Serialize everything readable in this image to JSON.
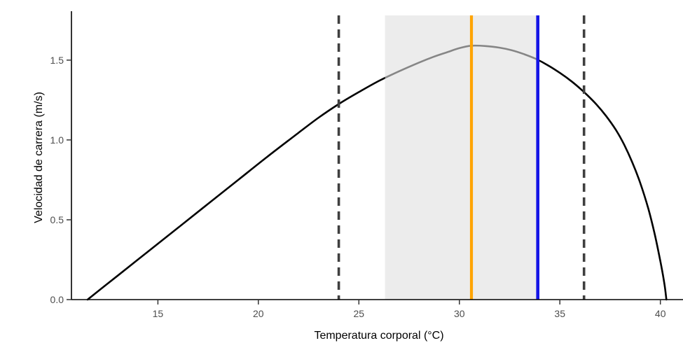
{
  "figure": {
    "background": "#ffffff"
  },
  "chart_data": {
    "type": "line",
    "title": "",
    "xlabel": "Temperatura corporal (°C)",
    "ylabel": "Velocidad de carrera (m/s)",
    "xlim": [
      10.7,
      41.3
    ],
    "ylim": [
      0,
      1.78
    ],
    "grid": false,
    "legend": "none",
    "x_ticks": [
      {
        "value": 15,
        "label": "15"
      },
      {
        "value": 20,
        "label": "20"
      },
      {
        "value": 25,
        "label": "25"
      },
      {
        "value": 30,
        "label": "30"
      },
      {
        "value": 35,
        "label": "35"
      },
      {
        "value": 40,
        "label": "40"
      }
    ],
    "y_ticks": [
      {
        "value": 0,
        "label": "0.0"
      },
      {
        "value": 0.5,
        "label": "0.5"
      },
      {
        "value": 1.0,
        "label": "1.0"
      },
      {
        "value": 1.5,
        "label": "1.5"
      }
    ],
    "series": [
      {
        "name": "curva-rendimiento-termico",
        "type": "line",
        "color": "#000000",
        "width": 2.6,
        "points": [
          [
            11.5,
            0.0
          ],
          [
            12.2,
            0.07
          ],
          [
            13.0,
            0.15
          ],
          [
            14.5,
            0.3
          ],
          [
            16.0,
            0.45
          ],
          [
            17.5,
            0.6
          ],
          [
            19.0,
            0.75
          ],
          [
            20.5,
            0.9
          ],
          [
            22.0,
            1.045
          ],
          [
            23.0,
            1.14
          ],
          [
            24.0,
            1.225
          ],
          [
            25.0,
            1.3
          ],
          [
            26.0,
            1.37
          ],
          [
            27.0,
            1.43
          ],
          [
            28.0,
            1.485
          ],
          [
            28.7,
            1.52
          ],
          [
            29.4,
            1.55
          ],
          [
            30.0,
            1.575
          ],
          [
            30.6,
            1.59
          ],
          [
            31.3,
            1.588
          ],
          [
            32.0,
            1.578
          ],
          [
            32.6,
            1.562
          ],
          [
            33.2,
            1.538
          ],
          [
            33.8,
            1.508
          ],
          [
            34.4,
            1.468
          ],
          [
            35.0,
            1.42
          ],
          [
            35.6,
            1.365
          ],
          [
            36.2,
            1.3
          ],
          [
            36.8,
            1.225
          ],
          [
            37.3,
            1.15
          ],
          [
            37.8,
            1.06
          ],
          [
            38.2,
            0.97
          ],
          [
            38.6,
            0.86
          ],
          [
            39.0,
            0.73
          ],
          [
            39.4,
            0.57
          ],
          [
            39.7,
            0.42
          ],
          [
            40.0,
            0.24
          ],
          [
            40.2,
            0.1
          ],
          [
            40.3,
            0.0
          ]
        ]
      }
    ],
    "shaded_region": {
      "name": "banda-termica-sombreada",
      "x_start": 26.3,
      "x_end": 33.9,
      "fill": "#e0e0e0",
      "opacity": 0.6
    },
    "vlines": [
      {
        "name": "limite-inferior-discontinua",
        "x": 24.0,
        "color": "#3f3f3f",
        "style": "dashed",
        "width": 3.6
      },
      {
        "name": "temperatura-optima-naranja",
        "x": 30.6,
        "color": "#FFA400",
        "style": "solid",
        "width": 4.2
      },
      {
        "name": "limite-azul",
        "x": 33.9,
        "color": "#1414E6",
        "style": "solid",
        "width": 4.6
      },
      {
        "name": "limite-superior-discontinua",
        "x": 36.2,
        "color": "#3f3f3f",
        "style": "dashed",
        "width": 3.6
      }
    ],
    "axis": {
      "line_color": "#000000",
      "tick_label_color": "#4d4d4d"
    }
  }
}
